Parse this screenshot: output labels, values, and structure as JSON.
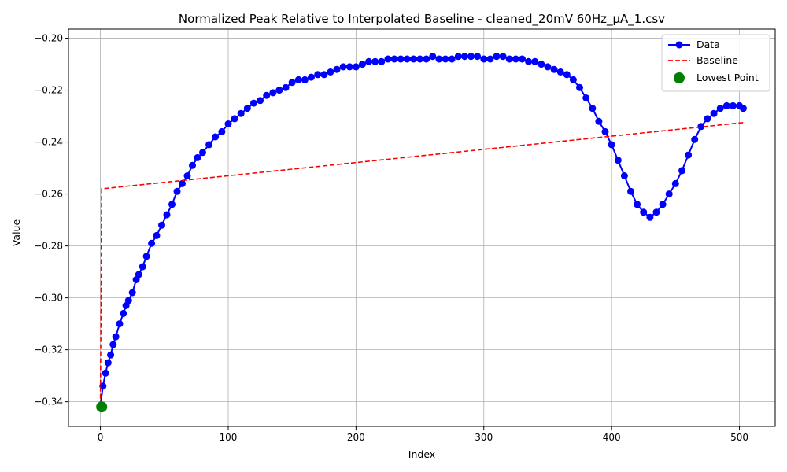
{
  "chart_data": {
    "type": "line",
    "title": "Normalized Peak Relative to Interpolated Baseline - cleaned_20mV 60Hz_µA_1.csv",
    "xlabel": "Index",
    "ylabel": "Value",
    "xlim": [
      -25,
      528
    ],
    "ylim": [
      -0.3495,
      -0.1965
    ],
    "xticks": [
      0,
      100,
      200,
      300,
      400,
      500
    ],
    "yticks": [
      -0.34,
      -0.32,
      -0.3,
      -0.28,
      -0.26,
      -0.24,
      -0.22,
      -0.2
    ],
    "xtick_labels": [
      "0",
      "100",
      "200",
      "300",
      "400",
      "500"
    ],
    "ytick_labels": [
      "−0.34",
      "−0.32",
      "−0.30",
      "−0.28",
      "−0.26",
      "−0.24",
      "−0.22",
      "−0.20"
    ],
    "grid": true,
    "legend": "top-right",
    "series": [
      {
        "name": "Data",
        "style": "line-marker",
        "color": "#0000ff",
        "x": [
          0,
          2,
          4,
          6,
          8,
          10,
          12,
          15,
          18,
          20,
          22,
          25,
          28,
          30,
          33,
          36,
          40,
          44,
          48,
          52,
          56,
          60,
          64,
          68,
          72,
          76,
          80,
          85,
          90,
          95,
          100,
          105,
          110,
          115,
          120,
          125,
          130,
          135,
          140,
          145,
          150,
          155,
          160,
          165,
          170,
          175,
          180,
          185,
          190,
          195,
          200,
          205,
          210,
          215,
          220,
          225,
          230,
          235,
          240,
          245,
          250,
          255,
          260,
          265,
          270,
          275,
          280,
          285,
          290,
          295,
          300,
          305,
          310,
          315,
          320,
          325,
          330,
          335,
          340,
          345,
          350,
          355,
          360,
          365,
          370,
          375,
          380,
          385,
          390,
          395,
          400,
          405,
          410,
          415,
          420,
          425,
          430,
          435,
          440,
          445,
          450,
          455,
          460,
          465,
          470,
          475,
          480,
          485,
          490,
          495,
          500,
          503
        ],
        "y": [
          -0.3415,
          -0.334,
          -0.329,
          -0.325,
          -0.322,
          -0.318,
          -0.315,
          -0.31,
          -0.306,
          -0.303,
          -0.301,
          -0.298,
          -0.293,
          -0.291,
          -0.288,
          -0.284,
          -0.279,
          -0.276,
          -0.272,
          -0.268,
          -0.264,
          -0.259,
          -0.256,
          -0.253,
          -0.249,
          -0.246,
          -0.244,
          -0.241,
          -0.238,
          -0.236,
          -0.233,
          -0.231,
          -0.229,
          -0.227,
          -0.225,
          -0.224,
          -0.222,
          -0.221,
          -0.22,
          -0.219,
          -0.217,
          -0.216,
          -0.216,
          -0.215,
          -0.214,
          -0.214,
          -0.213,
          -0.212,
          -0.211,
          -0.211,
          -0.211,
          -0.21,
          -0.209,
          -0.209,
          -0.209,
          -0.208,
          -0.208,
          -0.208,
          -0.208,
          -0.208,
          -0.208,
          -0.208,
          -0.207,
          -0.208,
          -0.208,
          -0.208,
          -0.207,
          -0.207,
          -0.207,
          -0.207,
          -0.208,
          -0.208,
          -0.207,
          -0.207,
          -0.208,
          -0.208,
          -0.208,
          -0.209,
          -0.209,
          -0.21,
          -0.211,
          -0.212,
          -0.213,
          -0.214,
          -0.216,
          -0.219,
          -0.223,
          -0.227,
          -0.232,
          -0.236,
          -0.241,
          -0.247,
          -0.253,
          -0.259,
          -0.264,
          -0.267,
          -0.269,
          -0.267,
          -0.264,
          -0.26,
          -0.256,
          -0.251,
          -0.245,
          -0.239,
          -0.234,
          -0.231,
          -0.229,
          -0.227,
          -0.226,
          -0.226,
          -0.226,
          -0.227
        ]
      },
      {
        "name": "Baseline",
        "style": "dashed",
        "color": "#ff0000",
        "x": [
          0,
          1,
          503
        ],
        "y": [
          -0.3415,
          -0.258,
          -0.2325
        ]
      },
      {
        "name": "Lowest Point",
        "style": "scatter",
        "color": "#008000",
        "x": [
          1
        ],
        "y": [
          -0.342
        ]
      }
    ]
  }
}
